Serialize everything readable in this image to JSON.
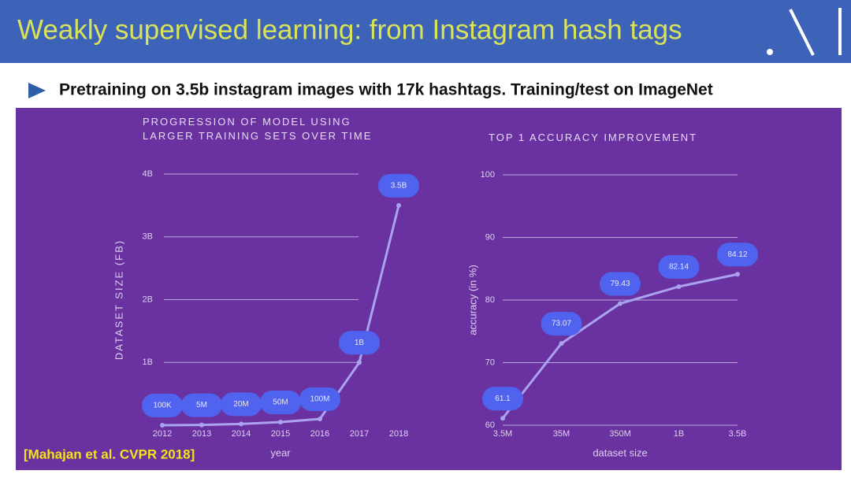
{
  "slide": {
    "title": "Weakly supervised learning: from Instagram hash tags",
    "bullet": "Pretraining on 3.5b instagram images with 17k hashtags. Training/test on ImageNet",
    "citation": "[Mahajan et al. CVPR 2018]"
  },
  "chart_data": [
    {
      "type": "line",
      "title": "PROGRESSION OF MODEL USING LARGER TRAINING SETS OVER TIME",
      "x_label": "year",
      "y_label": "DATASET SIZE (FB)",
      "categories": [
        "2012",
        "2013",
        "2014",
        "2015",
        "2016",
        "2017",
        "2018"
      ],
      "values": [
        0.0001,
        0.005,
        0.02,
        0.05,
        0.1,
        1,
        3.5
      ],
      "value_labels": [
        "100K",
        "5M",
        "20M",
        "50M",
        "100M",
        "1B",
        "3.5B"
      ],
      "ylim": [
        0,
        4
      ],
      "yticks": [
        {
          "value": 1,
          "label": "1B"
        },
        {
          "value": 2,
          "label": "2B"
        },
        {
          "value": 3,
          "label": "3B"
        },
        {
          "value": 4,
          "label": "4B"
        }
      ],
      "grid": true,
      "color": "#a9a3f0"
    },
    {
      "type": "line",
      "title": "TOP 1 ACCURACY IMPROVEMENT",
      "x_label": "dataset size",
      "y_label": "accuracy (in %)",
      "categories": [
        "3.5M",
        "35M",
        "350M",
        "1B",
        "3.5B"
      ],
      "values": [
        61.1,
        73.07,
        79.43,
        82.14,
        84.12
      ],
      "ylim": [
        60,
        100
      ],
      "yticks": [
        60,
        70,
        80,
        90,
        100
      ],
      "grid": true,
      "color": "#a9a3f0"
    }
  ]
}
